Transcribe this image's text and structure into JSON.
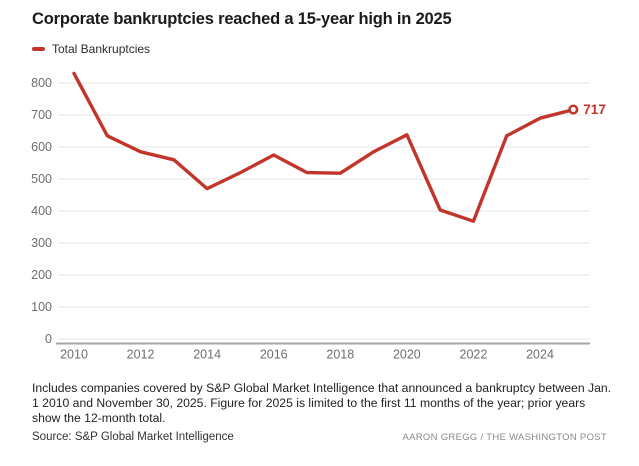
{
  "header": {
    "title": "Corporate bankruptcies reached a 15-year high in 2025"
  },
  "legend": {
    "label": "Total Bankruptcies"
  },
  "colors": {
    "line": "#c2352b",
    "end_label": "#c2352b",
    "grid": "#e5e5e5",
    "axis": "#a6a6a6",
    "tick_label": "#6e6e6e",
    "marker_fill": "#ffffff"
  },
  "chart_data": {
    "type": "line",
    "title": "Corporate bankruptcies reached a 15-year high in 2025",
    "xlabel": "",
    "ylabel": "",
    "x": [
      2010,
      2011,
      2012,
      2013,
      2014,
      2015,
      2016,
      2017,
      2018,
      2019,
      2020,
      2021,
      2022,
      2023,
      2024,
      2025
    ],
    "series": [
      {
        "name": "Total Bankruptcies",
        "values": [
          830,
          635,
          585,
          560,
          470,
          520,
          575,
          520,
          518,
          585,
          638,
          403,
          368,
          635,
          690,
          717
        ]
      }
    ],
    "x_tick_labels": [
      "2010",
      "2012",
      "2014",
      "2016",
      "2018",
      "2020",
      "2022",
      "2024"
    ],
    "x_ticks": [
      2010,
      2012,
      2014,
      2016,
      2018,
      2020,
      2022,
      2024
    ],
    "y_ticks": [
      0,
      100,
      200,
      300,
      400,
      500,
      600,
      700,
      800
    ],
    "ylim": [
      0,
      850
    ],
    "xlim": [
      2010,
      2025
    ],
    "grid": "horizontal",
    "legend_position": "top-left",
    "end_point": {
      "x": 2025,
      "value": 717,
      "label": "717",
      "marker": "open-circle"
    }
  },
  "footer": {
    "note": "Includes companies covered by S&P Global Market Intelligence that announced a bankruptcy between Jan. 1 2010 and November 30, 2025. Figure for 2025 is limited to the first 11 months of the year; prior years show the 12-month total.",
    "source": "Source: S&P Global Market Intelligence",
    "credit": "AARON GREGG / THE WASHINGTON POST"
  }
}
